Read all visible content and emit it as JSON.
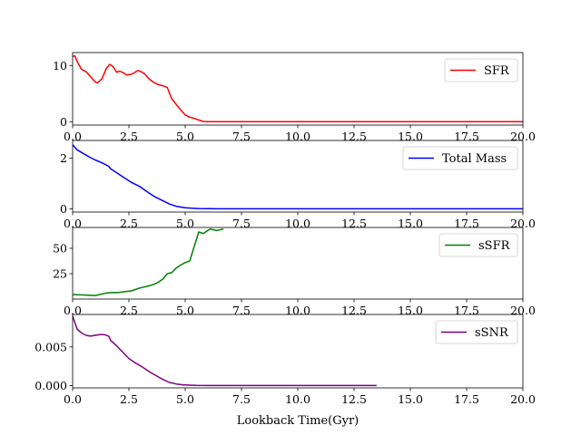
{
  "figure": {
    "xlabel": "Lookback Time(Gyr)"
  },
  "chart_data": [
    {
      "type": "line",
      "title": "",
      "xlabel": "",
      "ylabel": "",
      "xlim": [
        0,
        20
      ],
      "ylim": [
        -0.6,
        12.3
      ],
      "xticks": [
        "0.0",
        "2.5",
        "5.0",
        "7.5",
        "10.0",
        "12.5",
        "15.0",
        "17.5",
        "20.0"
      ],
      "yticks": [
        {
          "v": 0,
          "label": "0"
        },
        {
          "v": 10,
          "label": "10"
        }
      ],
      "legend": "top-right",
      "series": [
        {
          "name": "SFR",
          "color": "#ff0000",
          "x": [
            0.0,
            0.1,
            0.2,
            0.4,
            0.6,
            0.8,
            1.0,
            1.1,
            1.3,
            1.5,
            1.65,
            1.8,
            1.95,
            2.1,
            2.25,
            2.4,
            2.55,
            2.7,
            2.9,
            3.05,
            3.2,
            3.4,
            3.6,
            3.8,
            4.0,
            4.2,
            4.4,
            4.6,
            4.8,
            5.0,
            5.2,
            5.4,
            5.6,
            5.8,
            6.0,
            6.5,
            7.0,
            8.0,
            10.0,
            12.0,
            14.0,
            16.0,
            18.0,
            20.0
          ],
          "y": [
            11.6,
            11.7,
            10.7,
            9.3,
            8.9,
            8.0,
            7.1,
            6.9,
            7.6,
            9.5,
            10.2,
            9.8,
            8.8,
            9.0,
            8.7,
            8.3,
            8.4,
            8.6,
            9.1,
            8.9,
            8.5,
            7.6,
            7.0,
            6.6,
            6.4,
            6.1,
            4.1,
            3.1,
            2.1,
            1.2,
            0.8,
            0.6,
            0.3,
            0.05,
            0.0,
            0.0,
            0.0,
            0.0,
            0.0,
            0.0,
            0.0,
            0.0,
            0.0,
            0.0
          ]
        }
      ]
    },
    {
      "type": "line",
      "title": "",
      "xlabel": "",
      "ylabel": "",
      "xlim": [
        0,
        20
      ],
      "ylim": [
        -0.13,
        2.7
      ],
      "xticks": [
        "0.0",
        "2.5",
        "5.0",
        "7.5",
        "10.0",
        "12.5",
        "15.0",
        "17.5",
        "20.0"
      ],
      "yticks": [
        {
          "v": 0,
          "label": "0"
        },
        {
          "v": 2,
          "label": "2"
        }
      ],
      "legend": "top-right",
      "series": [
        {
          "name": "Total Mass",
          "color": "#0000ff",
          "x": [
            0.0,
            0.2,
            0.5,
            0.8,
            1.0,
            1.3,
            1.6,
            1.7,
            2.0,
            2.3,
            2.6,
            3.0,
            3.3,
            3.6,
            4.0,
            4.3,
            4.6,
            5.0,
            5.3,
            5.6,
            6.0,
            6.5,
            7.0,
            8.0,
            10.0,
            12.0,
            14.0,
            16.0,
            18.0,
            20.0
          ],
          "y": [
            2.53,
            2.33,
            2.17,
            2.02,
            1.93,
            1.82,
            1.68,
            1.57,
            1.4,
            1.22,
            1.05,
            0.87,
            0.68,
            0.5,
            0.32,
            0.19,
            0.1,
            0.04,
            0.02,
            0.01,
            0.005,
            0.0,
            0.0,
            0.0,
            0.0,
            0.0,
            0.0,
            0.0,
            0.0,
            0.0
          ]
        }
      ]
    },
    {
      "type": "line",
      "title": "",
      "xlabel": "",
      "ylabel": "",
      "xlim": [
        0,
        20
      ],
      "ylim": [
        0,
        70.5
      ],
      "xticks": [
        "0.0",
        "2.5",
        "5.0",
        "7.5",
        "10.0",
        "12.5",
        "15.0",
        "17.5",
        "20.0"
      ],
      "yticks": [
        {
          "v": 25,
          "label": "25"
        },
        {
          "v": 50,
          "label": "50"
        }
      ],
      "legend": "top-right",
      "series": [
        {
          "name": "sSFR",
          "color": "#008000",
          "x": [
            0.0,
            0.5,
            1.0,
            1.2,
            1.5,
            1.8,
            2.0,
            2.3,
            2.6,
            2.8,
            3.0,
            3.3,
            3.6,
            3.8,
            4.0,
            4.2,
            4.4,
            4.6,
            4.8,
            5.0,
            5.2,
            5.6,
            5.8,
            6.1,
            6.4,
            6.7
          ],
          "y": [
            4.5,
            4.0,
            3.5,
            4.5,
            6.0,
            6.5,
            6.3,
            7.2,
            8.0,
            9.5,
            11.0,
            12.5,
            14.5,
            16.5,
            19.5,
            25.0,
            26.0,
            30.5,
            33.5,
            36.0,
            37.5,
            66.0,
            64.5,
            69.0,
            67.5,
            69.0
          ]
        }
      ]
    },
    {
      "type": "line",
      "title": "",
      "xlabel": "Lookback Time(Gyr)",
      "ylabel": "",
      "xlim": [
        0,
        20
      ],
      "ylim": [
        -0.0003,
        0.0092
      ],
      "xticks": [
        "0.0",
        "2.5",
        "5.0",
        "7.5",
        "10.0",
        "12.5",
        "15.0",
        "17.5",
        "20.0"
      ],
      "yticks": [
        {
          "v": 0,
          "label": "0.000"
        },
        {
          "v": 0.005,
          "label": "0.005"
        }
      ],
      "legend": "top-right",
      "series": [
        {
          "name": "sSNR",
          "color": "#800080",
          "x": [
            0.0,
            0.2,
            0.4,
            0.6,
            0.8,
            1.0,
            1.2,
            1.4,
            1.6,
            1.7,
            1.9,
            2.2,
            2.5,
            2.8,
            3.1,
            3.4,
            3.7,
            4.0,
            4.3,
            4.6,
            4.9,
            5.2,
            5.5,
            6.0,
            7.0,
            8.0,
            10.0,
            12.0,
            13.5
          ],
          "y": [
            0.009,
            0.0073,
            0.0068,
            0.0065,
            0.0064,
            0.0065,
            0.0066,
            0.0066,
            0.0064,
            0.0058,
            0.0053,
            0.0044,
            0.0035,
            0.0029,
            0.0024,
            0.0018,
            0.0013,
            0.0008,
            0.0004,
            0.0002,
            0.0001,
            5e-05,
            2e-05,
            0.0,
            0.0,
            0.0,
            0.0,
            0.0,
            0.0
          ]
        }
      ]
    }
  ]
}
